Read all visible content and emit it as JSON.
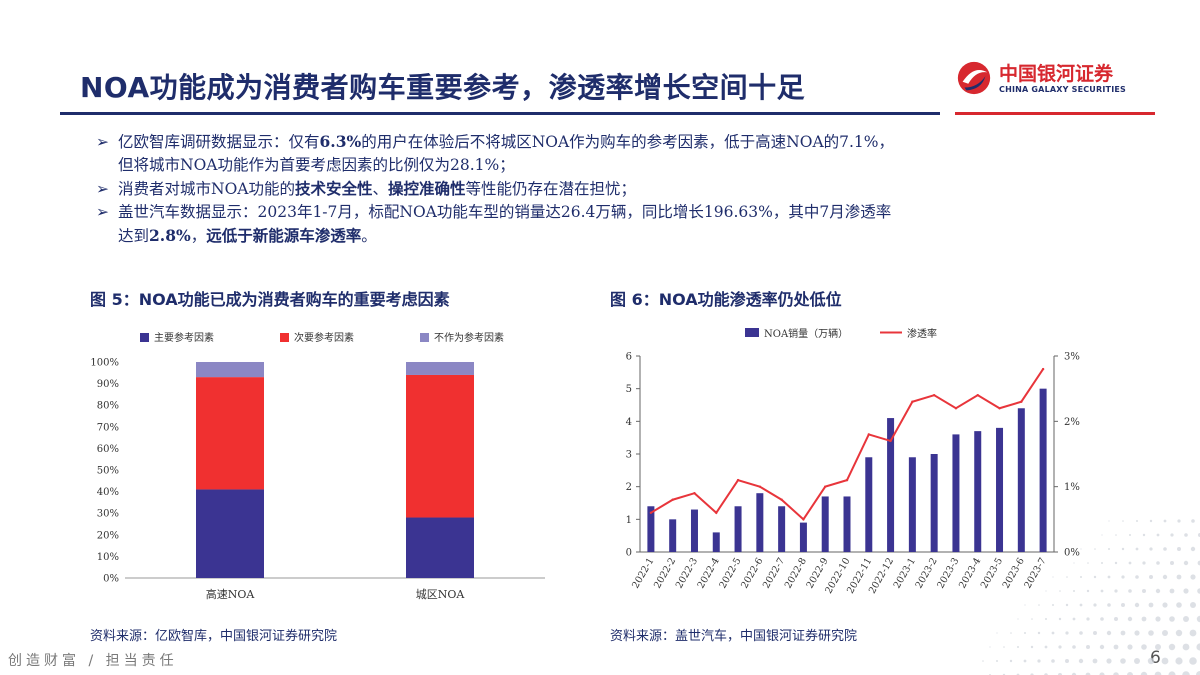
{
  "header": {
    "title": "NOA功能成为消费者购车重要参考，渗透率增长空间十足",
    "logo_cn": "中国银河证券",
    "logo_en": "CHINA GALAXY SECURITIES"
  },
  "bullets": [
    {
      "arrow": "➢",
      "segments": [
        {
          "t": "亿欧智库调研数据显示：仅有",
          "b": false
        },
        {
          "t": "6.3%",
          "b": true
        },
        {
          "t": "的用户在体验后不将城区NOA作为购车的参考因素，低于高速NOA的7.1%，",
          "b": false
        }
      ]
    },
    {
      "arrow": "",
      "segments": [
        {
          "t": "但将城市NOA功能作为首要考虑因素的比例仅为28.1%；",
          "b": false
        }
      ]
    },
    {
      "arrow": "➢",
      "segments": [
        {
          "t": "消费者对城市NOA功能的",
          "b": false
        },
        {
          "t": "技术安全性",
          "b": true
        },
        {
          "t": "、",
          "b": false
        },
        {
          "t": "操控准确性",
          "b": true
        },
        {
          "t": "等性能仍存在潜在担忧；",
          "b": false
        }
      ]
    },
    {
      "arrow": "➢",
      "segments": [
        {
          "t": "盖世汽车数据显示：2023年1-7月，标配NOA功能车型的销量达26.4万辆，同比增长196.63%，其中7月渗透率",
          "b": false
        }
      ]
    },
    {
      "arrow": "",
      "segments": [
        {
          "t": "达到",
          "b": false
        },
        {
          "t": "2.8%",
          "b": true
        },
        {
          "t": "，",
          "b": false
        },
        {
          "t": "远低于新能源车渗透率",
          "b": true
        },
        {
          "t": "。",
          "b": false
        }
      ]
    }
  ],
  "figure5": {
    "title": "图 5：NOA功能已成为消费者购车的重要考虑因素",
    "source": "资料来源：亿欧智库，中国银河证券研究院"
  },
  "figure6": {
    "title": "图 6：NOA功能渗透率仍处低位",
    "source": "资料来源：盖世汽车，中国银河证券研究院"
  },
  "footer": {
    "slogan": "创造财富 / 担当责任",
    "page": "6"
  },
  "chart_data": [
    {
      "type": "bar",
      "stacked": true,
      "categories": [
        "高速NOA",
        "城区NOA"
      ],
      "series": [
        {
          "name": "主要参考因素",
          "values": [
            41,
            28
          ],
          "color": "#3b3492"
        },
        {
          "name": "次要参考因素",
          "values": [
            52,
            66
          ],
          "color": "#f03030"
        },
        {
          "name": "不作为参考因素",
          "values": [
            7,
            6
          ],
          "color": "#8b87c4"
        }
      ],
      "yticks": [
        "0%",
        "10%",
        "20%",
        "30%",
        "40%",
        "50%",
        "60%",
        "70%",
        "80%",
        "90%",
        "100%"
      ],
      "ylim": [
        0,
        100
      ],
      "legend": "top"
    },
    {
      "type": "bar+line",
      "categories": [
        "2022-1",
        "2022-2",
        "2022-3",
        "2022-4",
        "2022-5",
        "2022-6",
        "2022-7",
        "2022-8",
        "2022-9",
        "2022-10",
        "2022-11",
        "2022-12",
        "2023-1",
        "2023-2",
        "2023-3",
        "2023-4",
        "2023-5",
        "2023-6",
        "2023-7"
      ],
      "series": [
        {
          "name": "NOA销量（万辆）",
          "kind": "bar",
          "axis": "left",
          "color": "#3b3492",
          "values": [
            1.4,
            1.0,
            1.3,
            0.6,
            1.4,
            1.8,
            1.4,
            0.9,
            1.7,
            1.7,
            2.9,
            4.1,
            2.9,
            3.0,
            3.6,
            3.7,
            3.8,
            4.4,
            5.0
          ]
        },
        {
          "name": "渗透率",
          "kind": "line",
          "axis": "right",
          "color": "#e8353b",
          "values": [
            0.6,
            0.8,
            0.9,
            0.6,
            1.1,
            1.0,
            0.8,
            0.5,
            1.0,
            1.1,
            1.8,
            1.7,
            2.3,
            2.4,
            2.2,
            2.4,
            2.2,
            2.3,
            2.8
          ]
        }
      ],
      "y_left_ticks": [
        "0",
        "1",
        "2",
        "3",
        "4",
        "5",
        "6"
      ],
      "y_left_range": [
        0,
        6
      ],
      "y_right_ticks": [
        "0%",
        "1%",
        "2%",
        "3%"
      ],
      "y_right_range": [
        0,
        3
      ],
      "legend": "top"
    }
  ],
  "colors": {
    "navy": "#1f2d6b",
    "red": "#d7282f"
  }
}
